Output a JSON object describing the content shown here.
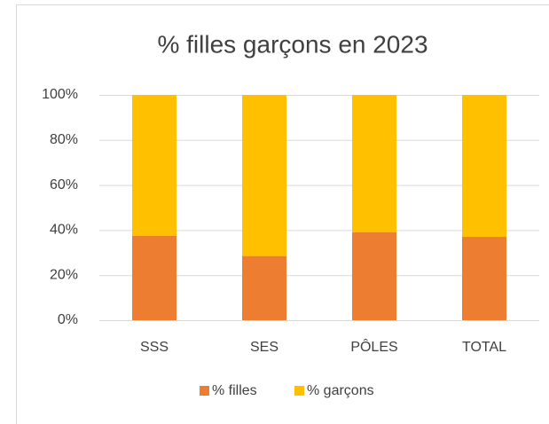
{
  "chart_data": {
    "type": "stacked_bar",
    "title": "% filles garçons en 2023",
    "categories": [
      "SSS",
      "SES",
      "PÔLES",
      "TOTAL"
    ],
    "series": [
      {
        "name": "% filles",
        "color": "#ed7d31",
        "values": [
          37.5,
          28.5,
          39,
          37
        ]
      },
      {
        "name": "% garçons",
        "color": "#ffc000",
        "values": [
          62.5,
          71.5,
          61,
          63
        ]
      }
    ],
    "ylim": [
      0,
      100
    ],
    "yticks": [
      {
        "value": 0,
        "label": "0%"
      },
      {
        "value": 20,
        "label": "20%"
      },
      {
        "value": 40,
        "label": "40%"
      },
      {
        "value": 60,
        "label": "60%"
      },
      {
        "value": 80,
        "label": "80%"
      },
      {
        "value": 100,
        "label": "100%"
      }
    ],
    "grid": true,
    "legend": "bottom"
  }
}
